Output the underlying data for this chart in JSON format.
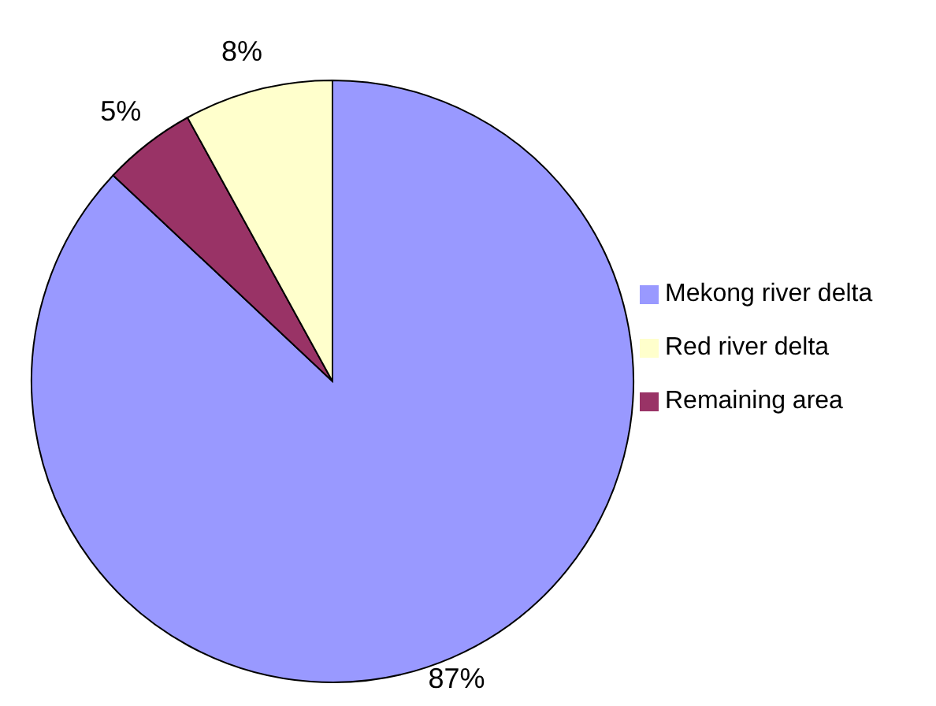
{
  "chart_data": {
    "type": "pie",
    "categories": [
      "Mekong river delta",
      "Remaining area",
      "Red river delta"
    ],
    "values": [
      87,
      5,
      8
    ],
    "value_labels": [
      "87%",
      "5%",
      "8%"
    ],
    "colors": [
      "#9999ff",
      "#993366",
      "#ffffcc"
    ],
    "legend": "right"
  }
}
